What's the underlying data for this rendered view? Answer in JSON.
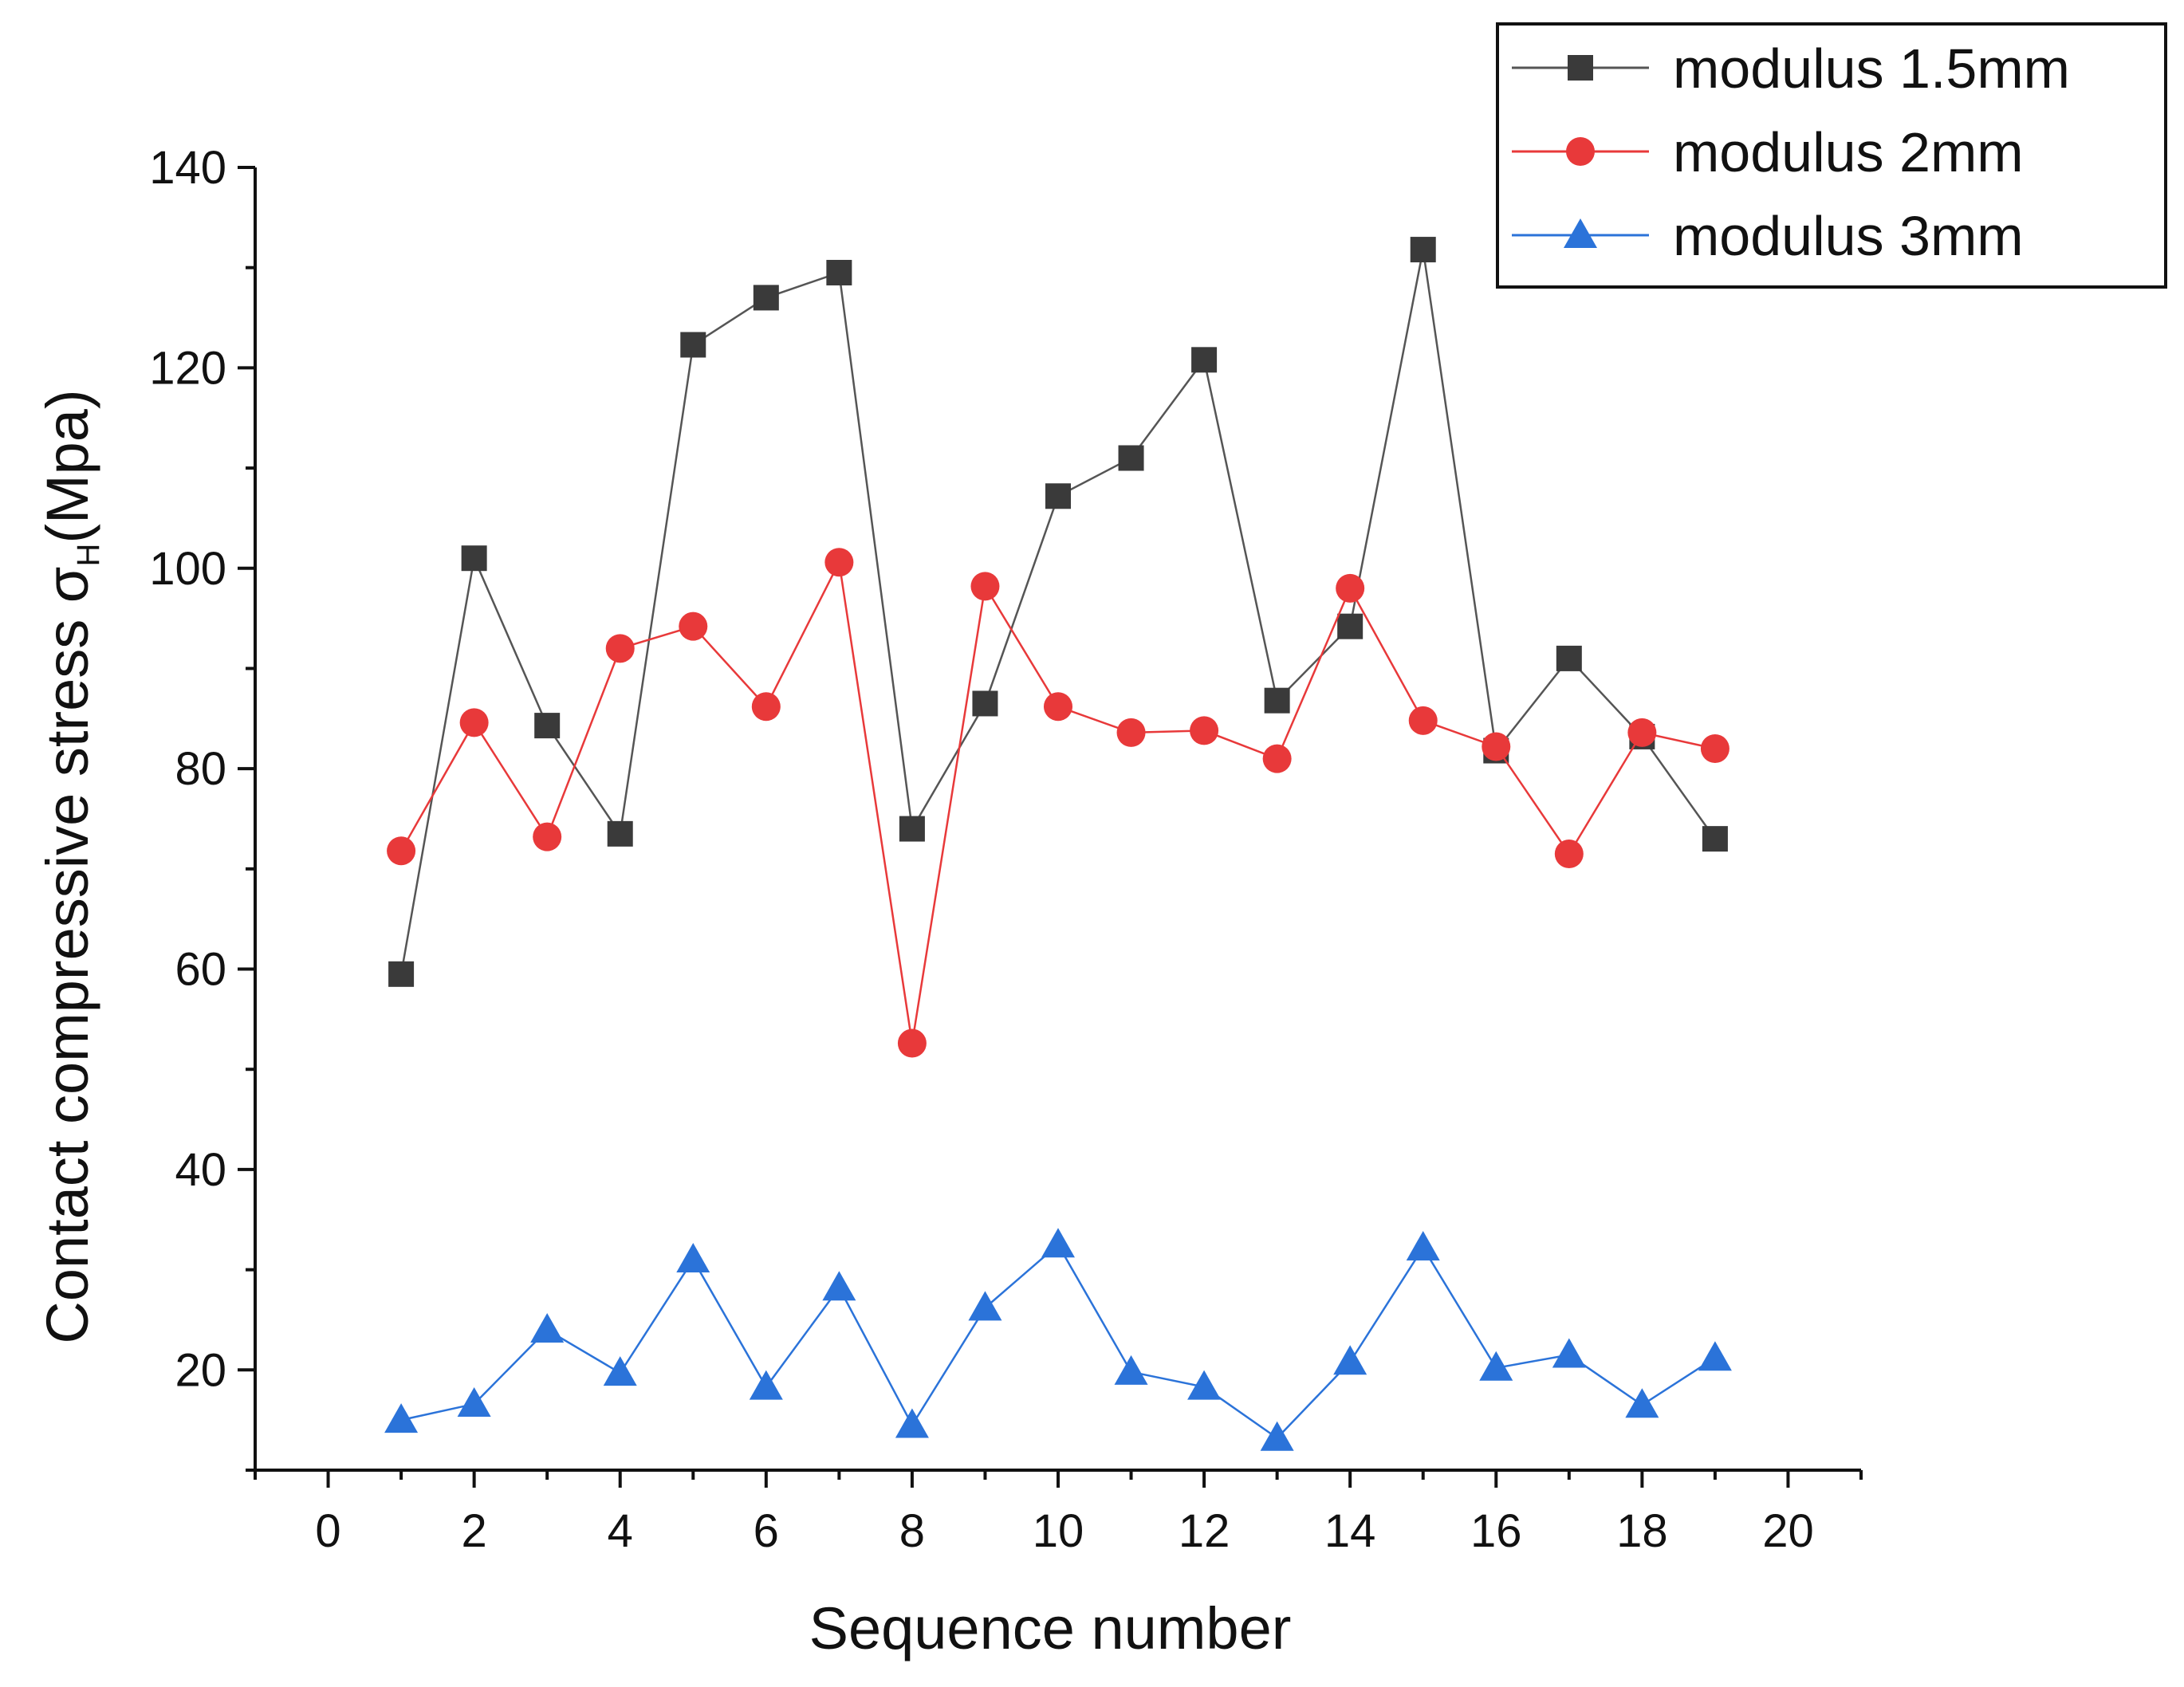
{
  "chart_data": {
    "type": "line",
    "title": "",
    "xlabel": "Sequence number",
    "ylabel": {
      "main": "Contact compressive stress  σ",
      "subscript": "H",
      "unit": "(Mpa)"
    },
    "xlim": [
      -1,
      21
    ],
    "ylim": [
      10,
      140
    ],
    "xticks": [
      0,
      2,
      4,
      6,
      8,
      10,
      12,
      14,
      16,
      18,
      20
    ],
    "yticks": [
      20,
      40,
      60,
      80,
      100,
      120,
      140
    ],
    "legend_position": "top-right",
    "x": [
      1,
      2,
      3,
      4,
      5,
      6,
      7,
      8,
      9,
      10,
      11,
      12,
      13,
      14,
      15,
      16,
      17,
      18,
      19
    ],
    "series": [
      {
        "name": "modulus 1.5mm",
        "color": "#3a3a3a",
        "line_color": "#555555",
        "marker": "square",
        "values": [
          59.5,
          101,
          84.3,
          73.5,
          122.3,
          127,
          129.5,
          74,
          86.5,
          107.2,
          111,
          120.8,
          86.8,
          94.2,
          131.8,
          81.8,
          91,
          83.2,
          73
        ]
      },
      {
        "name": "modulus 2mm",
        "color": "#e8393a",
        "line_color": "#e8393a",
        "marker": "circle",
        "values": [
          71.8,
          84.6,
          73.2,
          92,
          94.2,
          86.2,
          100.6,
          52.6,
          98.2,
          86.2,
          83.6,
          83.8,
          81,
          98,
          84.8,
          82.2,
          71.5,
          83.6,
          82
        ]
      },
      {
        "name": "modulus 3mm",
        "color": "#2b73d9",
        "line_color": "#2b73d9",
        "marker": "triangle",
        "values": [
          15,
          16.6,
          24,
          19.7,
          31,
          18.3,
          28.2,
          14.5,
          26.2,
          32.5,
          19.8,
          18.3,
          13.2,
          20.8,
          32.2,
          20.2,
          21.5,
          16.5,
          21.2
        ]
      }
    ]
  }
}
